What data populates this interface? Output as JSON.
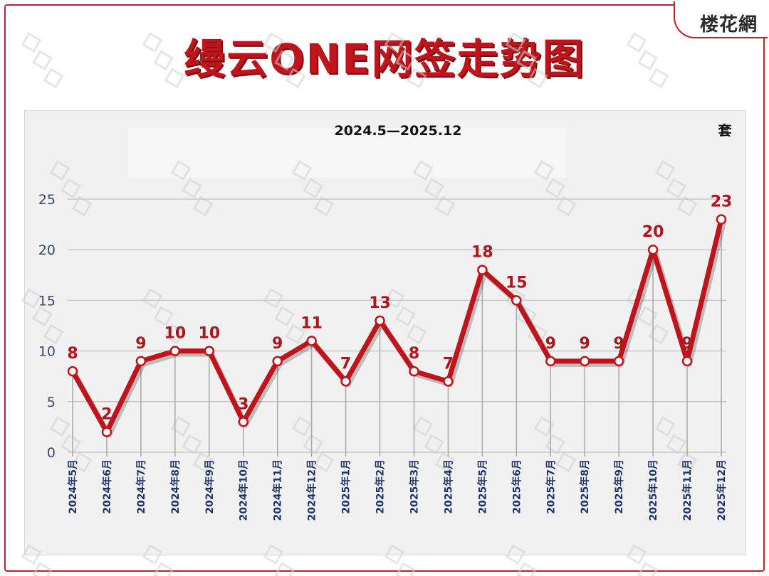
{
  "header": {
    "title": "缦云ONE网签走势图",
    "logo_text": "楼花網"
  },
  "chart_data": {
    "type": "line",
    "title": "2024.5—2025.12",
    "unit_label": "套",
    "categories": [
      "2024年5月",
      "2024年6月",
      "2024年7月",
      "2024年8月",
      "2024年9月",
      "2024年10月",
      "2024年11月",
      "2024年12月",
      "2025年1月",
      "2025年2月",
      "2025年3月",
      "2025年4月",
      "2025年5月",
      "2025年6月",
      "2025年7月",
      "2025年8月",
      "2025年9月",
      "2025年10月",
      "2025年11月",
      "2025年12月"
    ],
    "values": [
      8,
      2,
      9,
      10,
      10,
      3,
      9,
      11,
      7,
      13,
      8,
      7,
      18,
      15,
      9,
      9,
      9,
      20,
      9,
      23
    ],
    "ylim": [
      0,
      25
    ],
    "yticks": [
      0,
      5,
      10,
      15,
      20,
      25
    ],
    "grid": true,
    "line_color": "#c0141c",
    "label_color": "#b0141c"
  }
}
